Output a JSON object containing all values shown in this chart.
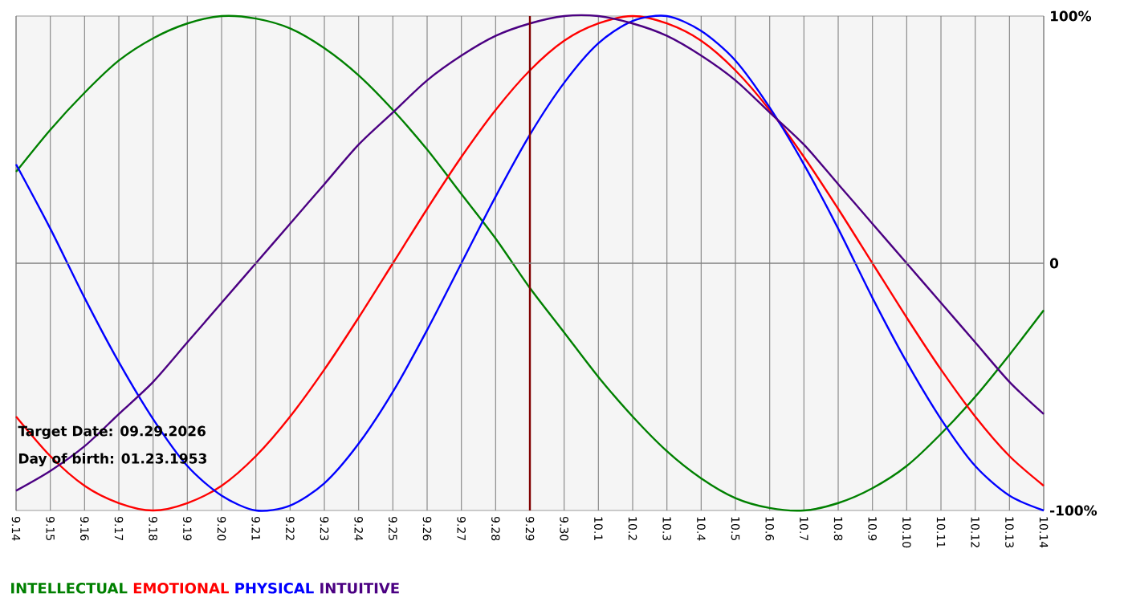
{
  "chart_data": {
    "type": "line",
    "categories": [
      "9.14",
      "9.15",
      "9.16",
      "9.17",
      "9.18",
      "9.19",
      "9.20",
      "9.21",
      "9.22",
      "9.23",
      "9.24",
      "9.25",
      "9.26",
      "9.27",
      "9.28",
      "9.29",
      "9.30",
      "10.1",
      "10.2",
      "10.3",
      "10.4",
      "10.5",
      "10.6",
      "10.7",
      "10.8",
      "10.9",
      "10.10",
      "10.11",
      "10.12",
      "10.13",
      "10.14"
    ],
    "series": [
      {
        "name": "INTELLECTUAL",
        "color": "#008000",
        "values": [
          37,
          54,
          69,
          82,
          91,
          97,
          100,
          99,
          95,
          87,
          76,
          62,
          46,
          28,
          10,
          -10,
          -28,
          -46,
          -62,
          -76,
          -87,
          -95,
          -99,
          -100,
          -97,
          -91,
          -82,
          -69,
          -54,
          -37,
          -19
        ]
      },
      {
        "name": "EMOTIONAL",
        "color": "#ff0000",
        "values": [
          -62,
          -78,
          -90,
          -97,
          -100,
          -97,
          -90,
          -78,
          -62,
          -43,
          -22,
          0,
          22,
          43,
          62,
          78,
          90,
          97,
          100,
          97,
          90,
          78,
          62,
          43,
          22,
          0,
          -22,
          -43,
          -62,
          -78,
          -90
        ]
      },
      {
        "name": "PHYSICAL",
        "color": "#0000ff",
        "values": [
          40,
          14,
          -14,
          -40,
          -63,
          -82,
          -94,
          -100,
          -98,
          -89,
          -73,
          -52,
          -27,
          0,
          27,
          52,
          73,
          89,
          98,
          100,
          94,
          82,
          63,
          40,
          14,
          -14,
          -40,
          -63,
          -82,
          -94,
          -100
        ]
      },
      {
        "name": "INTUITIVE",
        "color": "#4b0082",
        "values": [
          -92,
          -84,
          -74,
          -61,
          -48,
          -32,
          -16,
          0,
          16,
          32,
          48,
          61,
          74,
          84,
          92,
          97,
          100,
          100,
          97,
          92,
          84,
          74,
          61,
          48,
          32,
          16,
          0,
          -16,
          -32,
          -48,
          -61
        ]
      }
    ],
    "ylim": [
      -100,
      100
    ],
    "yticks": [
      {
        "value": -100,
        "label": "-100%"
      },
      0,
      {
        "value": 100,
        "label": "100%"
      }
    ],
    "grid": "x",
    "ref_lines": [
      {
        "axis": "x",
        "value": "9.29",
        "color": "#800000"
      },
      {
        "axis": "y",
        "value": 0,
        "color": "#808080"
      }
    ],
    "annotations": [
      "Target Date: 09.29.2026",
      "Day of birth: 01.23.1953"
    ],
    "legend": "bottom left",
    "line_style": "solid",
    "marker": "none"
  }
}
